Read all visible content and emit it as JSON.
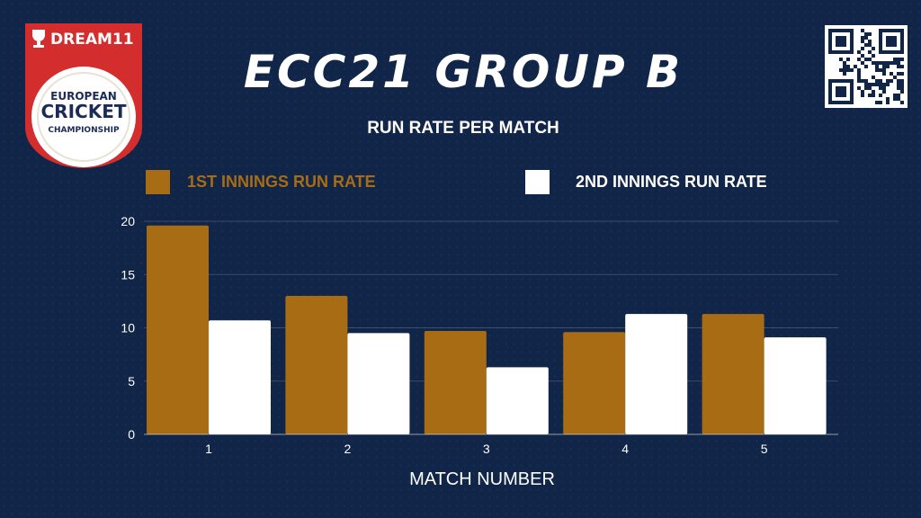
{
  "header": {
    "title": "ECC21 GROUP B",
    "logo": {
      "brand": "DREAM11",
      "line1": "EUROPEAN",
      "line2": "CRICKET",
      "line3": "CHAMPIONSHIP"
    },
    "qr_icon": "qr-code-icon"
  },
  "colors": {
    "background": "#102548",
    "first_innings": "#a86d14",
    "second_innings": "#ffffff",
    "logo_red": "#d32d2d"
  },
  "chart_data": {
    "type": "bar",
    "title": "RUN RATE PER MATCH",
    "xlabel": "MATCH NUMBER",
    "ylabel": "",
    "categories": [
      "1",
      "2",
      "3",
      "4",
      "5"
    ],
    "series": [
      {
        "name": "1ST INNINGS RUN RATE",
        "color": "#a86d14",
        "values": [
          19.6,
          13.0,
          9.7,
          9.6,
          11.3
        ]
      },
      {
        "name": "2ND INNINGS RUN RATE",
        "color": "#ffffff",
        "values": [
          10.7,
          9.5,
          6.3,
          11.3,
          9.1
        ]
      }
    ],
    "ylim": [
      0,
      20
    ],
    "yticks": [
      "0",
      "5",
      "10",
      "15",
      "20"
    ],
    "grid": true,
    "legend": "top"
  }
}
